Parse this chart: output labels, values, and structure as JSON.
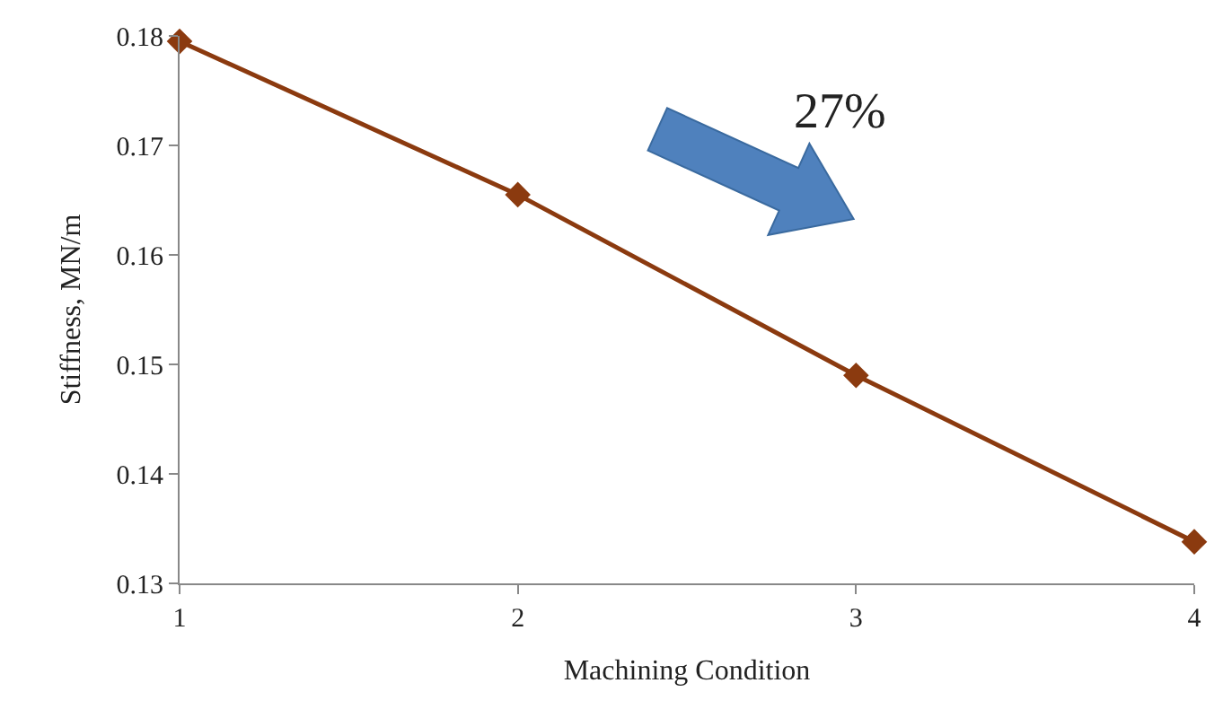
{
  "chart_data": {
    "type": "line",
    "xlabel": "Machining Condition",
    "ylabel": "Stiffness, MN/m",
    "x": [
      1,
      2,
      3,
      4
    ],
    "series": [
      {
        "color": "#8b3a0f",
        "values": [
          0.1795,
          0.1655,
          0.149,
          0.1338
        ]
      }
    ],
    "xlim": [
      1,
      4
    ],
    "xticks": [
      1,
      2,
      3,
      4
    ],
    "ylim": [
      0.13,
      0.18
    ],
    "yticks": [
      0.13,
      0.14,
      0.15,
      0.16,
      0.17,
      0.18
    ],
    "annotations": [
      "27%"
    ],
    "marker": "diamond",
    "line_style": "solid",
    "legend": false
  }
}
